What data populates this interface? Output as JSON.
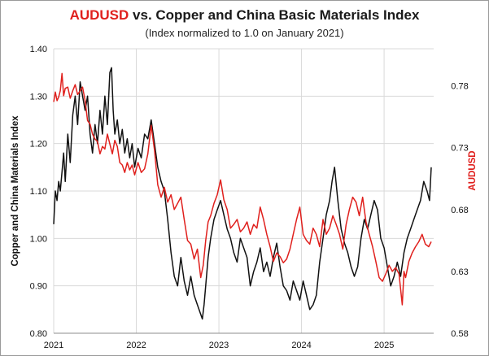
{
  "chart_data": {
    "type": "line",
    "title_part1": "AUDUSD",
    "title_part2": " vs. Copper and China Basic Materials Index",
    "subtitle": "(Index normalized to 1.0 on January 2021)",
    "ylabel_left": "Copper and China Materials Index",
    "ylabel_right": "AUDUSD",
    "xlim": [
      2021.0,
      2025.6
    ],
    "ylim_left": [
      0.8,
      1.4
    ],
    "ylim_right": [
      0.58,
      0.81
    ],
    "x_ticks": [
      "2021",
      "2022",
      "2023",
      "2024",
      "2025"
    ],
    "y_ticks_left": [
      "0.80",
      "0.90",
      "1.00",
      "1.10",
      "1.20",
      "1.30",
      "1.40"
    ],
    "y_ticks_right": [
      "0.58",
      "0.63",
      "0.68",
      "0.73",
      "0.78"
    ],
    "colors": {
      "index": "#111111",
      "audusd": "#e0201d",
      "accent": "#e0201d"
    },
    "series": [
      {
        "name": "Copper and China Basic Materials Index",
        "axis": "left",
        "color": "#111111",
        "x": [
          2021.0,
          2021.02,
          2021.04,
          2021.06,
          2021.08,
          2021.1,
          2021.12,
          2021.14,
          2021.17,
          2021.2,
          2021.23,
          2021.26,
          2021.29,
          2021.32,
          2021.35,
          2021.38,
          2021.41,
          2021.44,
          2021.47,
          2021.5,
          2021.53,
          2021.56,
          2021.59,
          2021.62,
          2021.65,
          2021.68,
          2021.7,
          2021.72,
          2021.74,
          2021.77,
          2021.8,
          2021.83,
          2021.86,
          2021.89,
          2021.92,
          2021.95,
          2021.98,
          2022.02,
          2022.06,
          2022.1,
          2022.14,
          2022.18,
          2022.22,
          2022.26,
          2022.3,
          2022.34,
          2022.38,
          2022.42,
          2022.46,
          2022.5,
          2022.54,
          2022.58,
          2022.62,
          2022.66,
          2022.7,
          2022.74,
          2022.78,
          2022.8,
          2022.82,
          2022.84,
          2022.87,
          2022.9,
          2022.94,
          2022.98,
          2023.02,
          2023.06,
          2023.1,
          2023.14,
          2023.18,
          2023.22,
          2023.26,
          2023.3,
          2023.34,
          2023.38,
          2023.42,
          2023.46,
          2023.5,
          2023.54,
          2023.58,
          2023.62,
          2023.66,
          2023.7,
          2023.74,
          2023.78,
          2023.82,
          2023.86,
          2023.9,
          2023.94,
          2023.98,
          2024.02,
          2024.06,
          2024.1,
          2024.14,
          2024.18,
          2024.22,
          2024.26,
          2024.3,
          2024.34,
          2024.37,
          2024.4,
          2024.44,
          2024.48,
          2024.52,
          2024.56,
          2024.6,
          2024.64,
          2024.68,
          2024.72,
          2024.76,
          2024.8,
          2024.84,
          2024.88,
          2024.92,
          2024.96,
          2025.0,
          2025.04,
          2025.08,
          2025.12,
          2025.16,
          2025.2,
          2025.24,
          2025.28,
          2025.32,
          2025.36,
          2025.4,
          2025.44,
          2025.48,
          2025.52,
          2025.55,
          2025.57
        ],
        "y": [
          1.03,
          1.1,
          1.08,
          1.12,
          1.1,
          1.14,
          1.18,
          1.12,
          1.22,
          1.16,
          1.26,
          1.3,
          1.24,
          1.33,
          1.3,
          1.27,
          1.3,
          1.22,
          1.18,
          1.24,
          1.2,
          1.27,
          1.22,
          1.3,
          1.24,
          1.35,
          1.36,
          1.27,
          1.22,
          1.25,
          1.2,
          1.23,
          1.18,
          1.21,
          1.17,
          1.2,
          1.15,
          1.19,
          1.17,
          1.22,
          1.21,
          1.25,
          1.2,
          1.15,
          1.12,
          1.1,
          1.04,
          0.97,
          0.92,
          0.9,
          0.96,
          0.91,
          0.88,
          0.92,
          0.88,
          0.86,
          0.84,
          0.83,
          0.86,
          0.9,
          0.96,
          1.0,
          1.04,
          1.06,
          1.08,
          1.05,
          1.02,
          1.0,
          0.97,
          0.95,
          1.0,
          0.98,
          0.96,
          0.9,
          0.93,
          0.95,
          0.98,
          0.93,
          0.95,
          0.92,
          0.96,
          0.99,
          0.94,
          0.9,
          0.89,
          0.87,
          0.91,
          0.89,
          0.87,
          0.91,
          0.88,
          0.85,
          0.86,
          0.88,
          0.95,
          1.0,
          1.05,
          1.08,
          1.12,
          1.15,
          1.08,
          1.02,
          0.99,
          0.97,
          0.94,
          0.92,
          0.94,
          1.0,
          1.04,
          1.02,
          1.05,
          1.08,
          1.06,
          1.0,
          0.98,
          0.94,
          0.9,
          0.92,
          0.95,
          0.92,
          0.97,
          1.0,
          1.02,
          1.04,
          1.06,
          1.08,
          1.12,
          1.1,
          1.08,
          1.15
        ]
      },
      {
        "name": "AUDUSD",
        "axis": "right",
        "color": "#e0201d",
        "x": [
          2021.0,
          2021.02,
          2021.04,
          2021.06,
          2021.08,
          2021.1,
          2021.12,
          2021.14,
          2021.17,
          2021.2,
          2021.23,
          2021.26,
          2021.29,
          2021.32,
          2021.35,
          2021.38,
          2021.41,
          2021.44,
          2021.47,
          2021.5,
          2021.53,
          2021.56,
          2021.59,
          2021.62,
          2021.65,
          2021.68,
          2021.71,
          2021.74,
          2021.77,
          2021.8,
          2021.83,
          2021.86,
          2021.89,
          2021.92,
          2021.95,
          2021.98,
          2022.02,
          2022.06,
          2022.1,
          2022.14,
          2022.18,
          2022.22,
          2022.26,
          2022.3,
          2022.34,
          2022.38,
          2022.42,
          2022.46,
          2022.5,
          2022.54,
          2022.58,
          2022.62,
          2022.66,
          2022.7,
          2022.74,
          2022.78,
          2022.81,
          2022.84,
          2022.87,
          2022.9,
          2022.94,
          2022.98,
          2023.02,
          2023.06,
          2023.1,
          2023.14,
          2023.18,
          2023.22,
          2023.26,
          2023.3,
          2023.34,
          2023.38,
          2023.42,
          2023.46,
          2023.5,
          2023.54,
          2023.58,
          2023.62,
          2023.66,
          2023.7,
          2023.74,
          2023.78,
          2023.82,
          2023.86,
          2023.9,
          2023.94,
          2023.98,
          2024.02,
          2024.06,
          2024.1,
          2024.14,
          2024.18,
          2024.22,
          2024.26,
          2024.3,
          2024.34,
          2024.38,
          2024.42,
          2024.46,
          2024.5,
          2024.54,
          2024.58,
          2024.62,
          2024.66,
          2024.7,
          2024.74,
          2024.78,
          2024.82,
          2024.86,
          2024.9,
          2024.94,
          2024.98,
          2025.02,
          2025.06,
          2025.1,
          2025.14,
          2025.18,
          2025.22,
          2025.24,
          2025.26,
          2025.3,
          2025.34,
          2025.38,
          2025.42,
          2025.46,
          2025.5,
          2025.54,
          2025.57
        ],
        "y": [
          0.767,
          0.775,
          0.768,
          0.771,
          0.776,
          0.79,
          0.772,
          0.778,
          0.779,
          0.77,
          0.776,
          0.781,
          0.773,
          0.776,
          0.779,
          0.768,
          0.752,
          0.749,
          0.741,
          0.737,
          0.735,
          0.725,
          0.731,
          0.729,
          0.741,
          0.733,
          0.725,
          0.736,
          0.731,
          0.718,
          0.716,
          0.71,
          0.718,
          0.712,
          0.716,
          0.708,
          0.718,
          0.71,
          0.713,
          0.725,
          0.748,
          0.728,
          0.7,
          0.69,
          0.698,
          0.686,
          0.692,
          0.68,
          0.685,
          0.69,
          0.672,
          0.655,
          0.652,
          0.64,
          0.648,
          0.625,
          0.635,
          0.655,
          0.67,
          0.675,
          0.685,
          0.692,
          0.704,
          0.688,
          0.68,
          0.665,
          0.668,
          0.672,
          0.662,
          0.665,
          0.67,
          0.66,
          0.668,
          0.665,
          0.682,
          0.672,
          0.66,
          0.65,
          0.638,
          0.645,
          0.642,
          0.637,
          0.64,
          0.648,
          0.66,
          0.672,
          0.682,
          0.66,
          0.655,
          0.652,
          0.665,
          0.66,
          0.65,
          0.672,
          0.66,
          0.665,
          0.675,
          0.668,
          0.66,
          0.648,
          0.668,
          0.68,
          0.69,
          0.686,
          0.675,
          0.69,
          0.67,
          0.66,
          0.65,
          0.638,
          0.625,
          0.622,
          0.628,
          0.635,
          0.63,
          0.633,
          0.628,
          0.603,
          0.63,
          0.625,
          0.638,
          0.645,
          0.65,
          0.654,
          0.66,
          0.652,
          0.65,
          0.654
        ]
      }
    ]
  }
}
